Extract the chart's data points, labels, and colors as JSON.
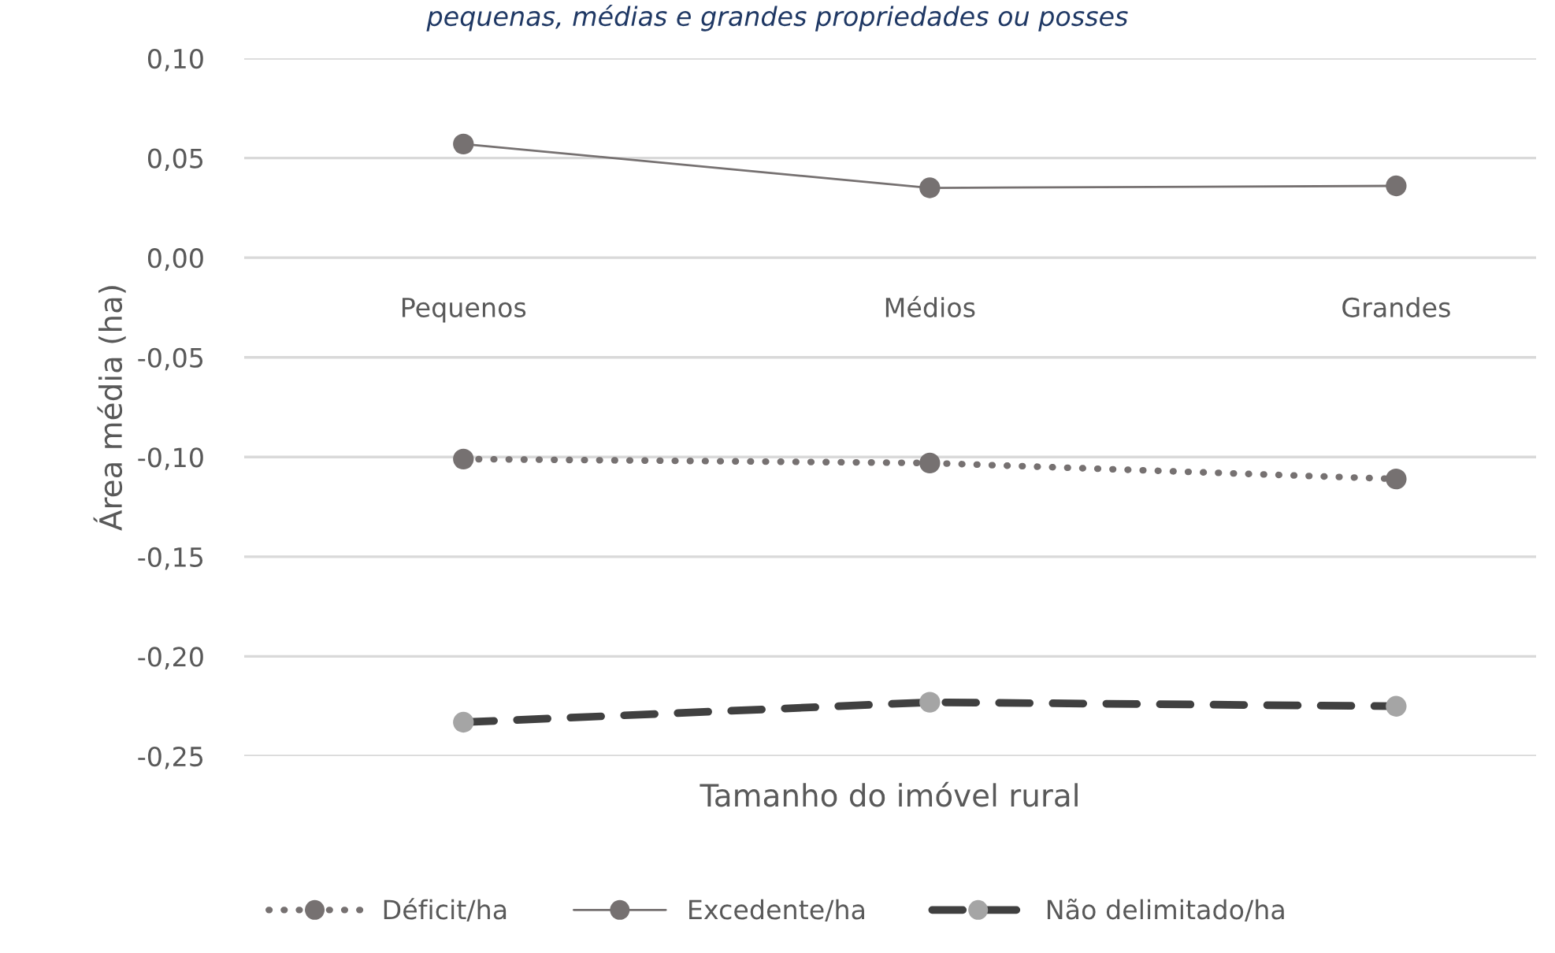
{
  "chart_data": {
    "type": "line",
    "annotations": [
      "pequenas, médias e grandes propriedades ou posses"
    ],
    "xlabel": "Tamanho do imóvel rural",
    "ylabel": "Área média (ha)",
    "categories": [
      "Pequenos",
      "Médios",
      "Grandes"
    ],
    "series": [
      {
        "name": "Déficit/ha",
        "color": "#767171",
        "line_style": "dotted",
        "values": [
          -0.101,
          -0.103,
          -0.111
        ]
      },
      {
        "name": "Excedente/ha",
        "color": "#767171",
        "line_style": "solid",
        "values": [
          0.057,
          0.035,
          0.036
        ]
      },
      {
        "name": "Não delimitado/ha",
        "color": "#404040",
        "colors": [
          "#a5a5a5",
          "#a5a5a5",
          "#a5a5a5"
        ],
        "line_style": "dashed",
        "values": [
          -0.233,
          -0.223,
          -0.225
        ]
      }
    ],
    "ylim": [
      -0.25,
      0.1
    ],
    "yticks": [
      {
        "value": 0.1,
        "label": "0,10"
      },
      {
        "value": 0.05,
        "label": "0,05"
      },
      {
        "value": 0,
        "label": "0,00"
      },
      {
        "value": -0.05,
        "label": "-0,05"
      },
      {
        "value": -0.1,
        "label": "-0,10"
      },
      {
        "value": -0.15,
        "label": "-0,15"
      },
      {
        "value": -0.2,
        "label": "-0,20"
      },
      {
        "value": -0.25,
        "label": "-0,25"
      }
    ],
    "grid": "y",
    "legend": "bottom",
    "marker": "circle"
  }
}
